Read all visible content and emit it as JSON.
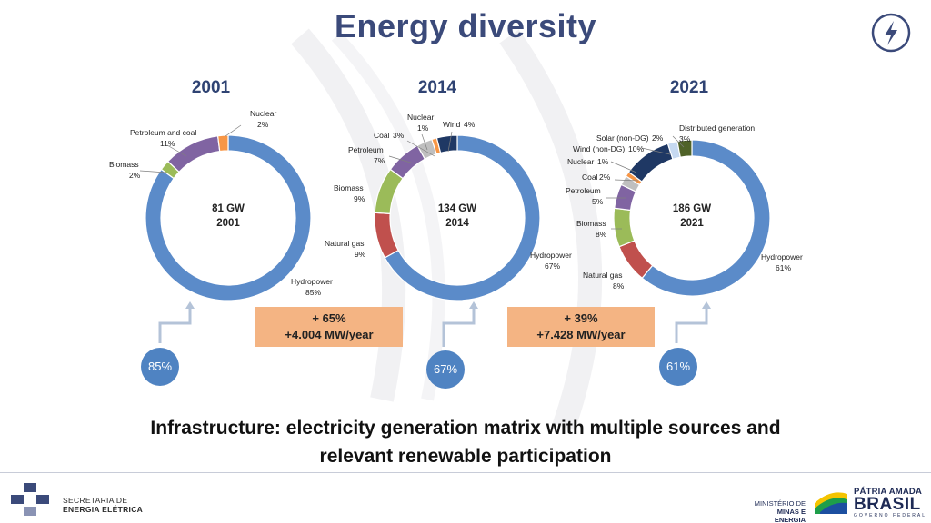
{
  "header": {
    "title": "Energy diversity",
    "icon": "lightning-bolt-icon"
  },
  "charts": [
    {
      "year_label": "2001",
      "capacity": "81 GW",
      "center_year": "2001",
      "percent_bubble": "85%"
    },
    {
      "year_label": "2014",
      "capacity": "134 GW",
      "center_year": "2014",
      "percent_bubble": "67%"
    },
    {
      "year_label": "2021",
      "capacity": "186 GW",
      "center_year": "2021",
      "percent_bubble": "61%"
    }
  ],
  "growth": [
    {
      "pct": "+ 65%",
      "rate": "+4.004 MW/year"
    },
    {
      "pct": "+ 39%",
      "rate": "+7.428 MW/year"
    }
  ],
  "chart_data": [
    {
      "type": "pie",
      "variant": "donut",
      "title": "2001",
      "center_text": [
        "81 GW",
        "2001"
      ],
      "slices": [
        {
          "label": "Hydropower",
          "value": 85,
          "display": "85%",
          "color": "#5b8bc9"
        },
        {
          "label": "Biomass",
          "value": 2,
          "display": "2%",
          "color": "#9bbb59"
        },
        {
          "label": "Petroleum and coal",
          "value": 11,
          "display": "11%",
          "color": "#8064a2"
        },
        {
          "label": "Nuclear",
          "value": 2,
          "display": "2%",
          "color": "#f79646"
        }
      ]
    },
    {
      "type": "pie",
      "variant": "donut",
      "title": "2014",
      "center_text": [
        "134 GW",
        "2014"
      ],
      "slices": [
        {
          "label": "Hydropower",
          "value": 67,
          "display": "67%",
          "color": "#5b8bc9"
        },
        {
          "label": "Natural gas",
          "value": 9,
          "display": "9%",
          "color": "#c0504d"
        },
        {
          "label": "Biomass",
          "value": 9,
          "display": "9%",
          "color": "#9bbb59"
        },
        {
          "label": "Petroleum",
          "value": 7,
          "display": "7%",
          "color": "#8064a2"
        },
        {
          "label": "Coal",
          "value": 3,
          "display": "3%",
          "color": "#bfbfbf"
        },
        {
          "label": "Nuclear",
          "value": 1,
          "display": "1%",
          "color": "#f79646"
        },
        {
          "label": "Wind",
          "value": 4,
          "display": "4%",
          "color": "#1f3864"
        }
      ]
    },
    {
      "type": "pie",
      "variant": "donut",
      "title": "2021",
      "center_text": [
        "186 GW",
        "2021"
      ],
      "slices": [
        {
          "label": "Hydropower",
          "value": 61,
          "display": "61%",
          "color": "#5b8bc9"
        },
        {
          "label": "Natural gas",
          "value": 8,
          "display": "8%",
          "color": "#c0504d"
        },
        {
          "label": "Biomass",
          "value": 8,
          "display": "8%",
          "color": "#9bbb59"
        },
        {
          "label": "Petroleum",
          "value": 5,
          "display": "5%",
          "color": "#8064a2"
        },
        {
          "label": "Coal",
          "value": 2,
          "display": "2%",
          "color": "#bfbfbf"
        },
        {
          "label": "Nuclear",
          "value": 1,
          "display": "1%",
          "color": "#f79646"
        },
        {
          "label": "Wind (non-DG)",
          "value": 10,
          "display": "10%",
          "color": "#1f3864"
        },
        {
          "label": "Solar (non-DG)",
          "value": 2,
          "display": "2%",
          "color": "#c6d9f1"
        },
        {
          "label": "Distributed generation",
          "value": 3,
          "display": "3%",
          "color": "#4f6228"
        }
      ]
    }
  ],
  "subtitle": {
    "line1": "Infrastructure: electricity generation matrix with multiple sources and",
    "line2": "relevant renewable participation"
  },
  "footer": {
    "org_line1": "SECRETARIA DE",
    "org_line2": "ENERGIA ELÉTRICA",
    "ministry_line1": "MINISTÉRIO DE",
    "ministry_line2": "MINAS E ENERGIA",
    "gov_line1": "PÁTRIA AMADA",
    "gov_line2": "BRASIL",
    "gov_line3": "GOVERNO FEDERAL"
  }
}
